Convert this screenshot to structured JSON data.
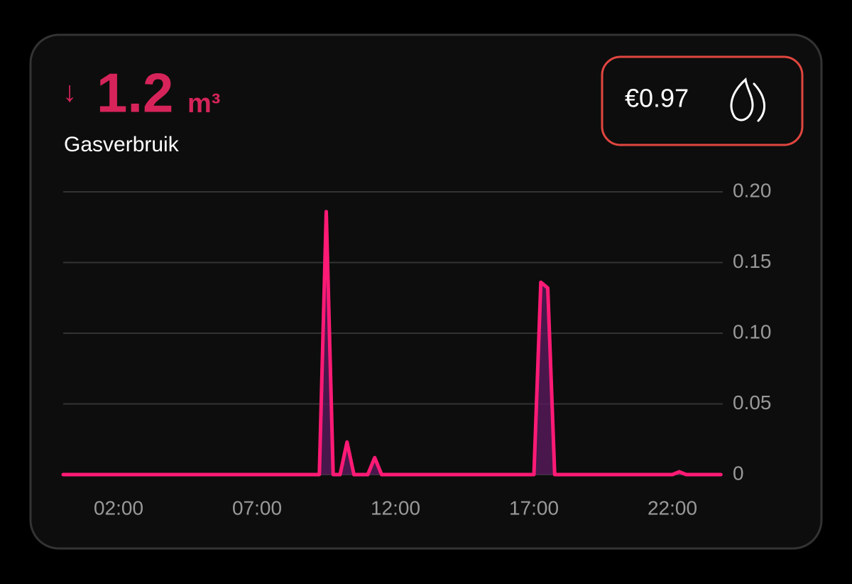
{
  "header": {
    "arrow": "↓",
    "value": "1.2",
    "unit": "m³",
    "label": "Gasverbruik"
  },
  "cost": "€0.97",
  "chart_data": {
    "type": "line",
    "x": [
      0,
      9.25,
      9.5,
      9.75,
      10,
      10.25,
      10.5,
      11,
      11.25,
      11.5,
      17,
      17.25,
      17.5,
      17.75,
      22,
      22.25,
      22.5,
      23.75
    ],
    "series": [
      {
        "color": "#ff1a75",
        "fill": "#5a1a5e",
        "values": [
          0,
          0,
          0.186,
          0,
          0,
          0.023,
          0,
          0,
          0.012,
          0,
          0,
          0.136,
          0.132,
          0,
          0,
          0.002,
          0,
          0
        ]
      }
    ],
    "xlim": [
      0,
      24
    ],
    "xticks": [
      {
        "value": 2,
        "label": "02:00"
      },
      {
        "value": 7,
        "label": "07:00"
      },
      {
        "value": 12,
        "label": "12:00"
      },
      {
        "value": 17,
        "label": "17:00"
      },
      {
        "value": 22,
        "label": "22:00"
      }
    ],
    "ylim": [
      0,
      0.2
    ],
    "yticks": [
      0,
      0.05,
      {
        "value": 0.1,
        "label": "0.10"
      },
      0.15,
      {
        "value": 0.2,
        "label": "0.20"
      }
    ],
    "grid": true
  }
}
